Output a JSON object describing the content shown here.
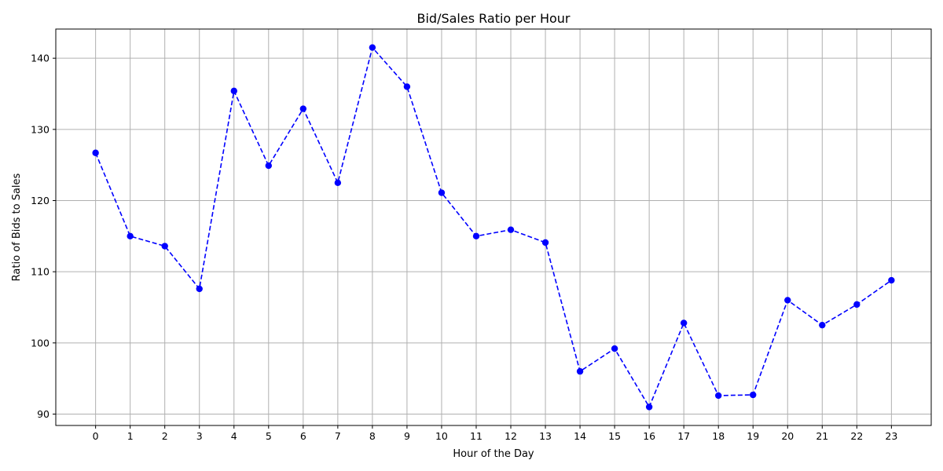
{
  "chart_data": {
    "type": "line",
    "title": "Bid/Sales Ratio per Hour",
    "xlabel": "Hour of the Day",
    "ylabel": "Ratio of Bids to Sales",
    "x": [
      0,
      1,
      2,
      3,
      4,
      5,
      6,
      7,
      8,
      9,
      10,
      11,
      12,
      13,
      14,
      15,
      16,
      17,
      18,
      19,
      20,
      21,
      22,
      23
    ],
    "series": [
      {
        "values": [
          126.7,
          115.0,
          113.6,
          107.6,
          135.4,
          124.9,
          132.9,
          122.5,
          141.5,
          136.0,
          121.1,
          115.0,
          115.9,
          114.1,
          96.0,
          99.2,
          91.0,
          102.8,
          92.6,
          92.7,
          106.0,
          102.5,
          105.4,
          108.8
        ],
        "color": "#0000ff",
        "line_style": "dashed",
        "marker": "circle"
      }
    ],
    "x_ticks": [
      "0",
      "1",
      "2",
      "3",
      "4",
      "5",
      "6",
      "7",
      "8",
      "9",
      "10",
      "11",
      "12",
      "13",
      "14",
      "15",
      "16",
      "17",
      "18",
      "19",
      "20",
      "21",
      "22",
      "23"
    ],
    "y_ticks": [
      "90",
      "100",
      "110",
      "120",
      "130",
      "140"
    ],
    "xlim": [
      -1.15,
      24.15
    ],
    "ylim": [
      88.4,
      144.1
    ],
    "grid": true
  }
}
